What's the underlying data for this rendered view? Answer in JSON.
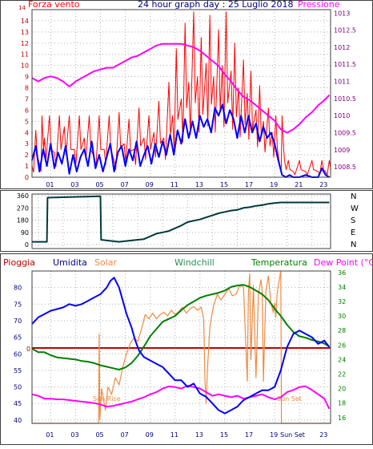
{
  "colors": {
    "wind": "#ff0000",
    "wind_avg": "#0000ff",
    "pressure": "#ff00ff",
    "direction": "#003a3a",
    "humidity": "#0000ff",
    "solar": "#f08a40",
    "windchill": "#2e8b57",
    "temperature": "#008000",
    "dewpoint": "#ff00ff",
    "rain": "#c00000",
    "axis_red": "#c00000",
    "axis_navy": "#000080",
    "axis_violet": "#800080",
    "grid": "#b0b0b0"
  },
  "chart_data": [
    {
      "type": "line",
      "title": "24 hour graph day : 25 Luglio 2018",
      "left_label": "Forza vento",
      "right_label": "Pressione",
      "y_ticks": [
        0,
        1,
        2,
        3,
        4,
        5,
        6,
        7,
        8,
        9,
        10,
        11,
        12,
        13,
        14
      ],
      "y_ticks_top": "14",
      "ylim": [
        0,
        15
      ],
      "y2_ticks": [
        "1008.5",
        "1009",
        "1009.5",
        "1010",
        "1010.5",
        "1011",
        "1011.5",
        "1012",
        "1012.5",
        "1013"
      ],
      "y2lim": [
        1008.2,
        1013.1
      ],
      "x_ticks": [
        "01",
        "03",
        "05",
        "07",
        "09",
        "11",
        "13",
        "15",
        "17",
        "19",
        "21",
        "23"
      ],
      "xlim": [
        0,
        24
      ],
      "series": [
        {
          "key": "wind_gust",
          "x": [
            0,
            0.3,
            0.6,
            0.8,
            1.0,
            1.4,
            1.8,
            2.2,
            2.6,
            3.0,
            3.4,
            3.8,
            4.2,
            4.6,
            5.0,
            5.4,
            5.8,
            6.2,
            6.6,
            7.0,
            7.4,
            7.8,
            8.2,
            8.6,
            9.0,
            9.4,
            9.8,
            10.2,
            10.6,
            11.0,
            11.3,
            11.6,
            12.0,
            12.3,
            12.6,
            13.0,
            13.3,
            13.6,
            14.0,
            14.3,
            14.6,
            15.0,
            15.3,
            15.6,
            16.0,
            16.3,
            16.6,
            17.0,
            17.3,
            17.6,
            18.0,
            18.3,
            18.6,
            19.0,
            19.3,
            19.6,
            19.9,
            20.1,
            20.3,
            20.6,
            21.0,
            21.5,
            22.0,
            22.5,
            23.0,
            23.3,
            23.6,
            23.9
          ],
          "values": [
            1.0,
            4.2,
            1.2,
            5.5,
            3.5,
            5.5,
            2.2,
            5.5,
            4.5,
            5.5,
            2.5,
            5.5,
            3.5,
            5.5,
            1.8,
            5.5,
            2.5,
            5.5,
            1.5,
            5.8,
            3.0,
            5.2,
            2.5,
            6.2,
            3.5,
            5.5,
            4.0,
            6.8,
            3.5,
            8.5,
            5.5,
            11.5,
            7.0,
            13.8,
            8.5,
            14.8,
            9.0,
            12.5,
            10.2,
            14.5,
            9.0,
            13.2,
            10.0,
            14.8,
            9.5,
            12.0,
            8.0,
            10.5,
            7.5,
            9.5,
            6.0,
            8.2,
            5.0,
            6.2,
            4.0,
            5.5,
            1.2,
            5.5,
            1.5,
            1.5,
            0.5,
            1.5,
            0.5,
            1.5,
            0.5,
            1.5,
            0.5,
            1.5
          ]
        },
        {
          "key": "wind_avg",
          "x": [
            0,
            0.3,
            0.6,
            0.9,
            1.2,
            1.5,
            1.8,
            2.1,
            2.4,
            2.7,
            3.0,
            3.3,
            3.6,
            3.9,
            4.2,
            4.5,
            4.8,
            5.1,
            5.4,
            5.7,
            6.0,
            6.3,
            6.6,
            6.9,
            7.2,
            7.5,
            7.8,
            8.1,
            8.4,
            8.7,
            9.0,
            9.3,
            9.6,
            9.9,
            10.2,
            10.5,
            10.8,
            11.1,
            11.4,
            11.7,
            12.0,
            12.3,
            12.6,
            12.9,
            13.2,
            13.5,
            13.8,
            14.1,
            14.4,
            14.7,
            15.0,
            15.3,
            15.6,
            15.9,
            16.2,
            16.5,
            16.8,
            17.1,
            17.4,
            17.7,
            18.0,
            18.3,
            18.6,
            18.9,
            19.2,
            19.5,
            19.8,
            20.1,
            20.4,
            20.7,
            21.0,
            21.5,
            22.0,
            22.5,
            23.0,
            23.3,
            23.6,
            23.9
          ],
          "values": [
            1.5,
            2.8,
            0.5,
            2.5,
            1.0,
            3.0,
            0.8,
            2.2,
            1.2,
            2.8,
            0.3,
            2.0,
            0.5,
            1.8,
            2.5,
            1.0,
            3.2,
            0.8,
            2.0,
            0.5,
            1.8,
            3.0,
            0.5,
            2.2,
            2.8,
            1.0,
            2.5,
            1.5,
            3.2,
            1.0,
            2.0,
            2.8,
            1.2,
            3.0,
            1.8,
            3.2,
            2.0,
            3.8,
            2.0,
            4.2,
            3.0,
            5.2,
            3.5,
            5.0,
            3.5,
            5.5,
            4.5,
            5.2,
            4.0,
            6.2,
            5.5,
            6.5,
            4.8,
            6.0,
            5.2,
            3.5,
            5.5,
            4.0,
            5.5,
            4.0,
            4.8,
            3.2,
            4.5,
            3.5,
            4.0,
            3.0,
            1.5,
            0.2,
            0.0,
            0.2,
            0.0,
            0.0,
            0.2,
            0.0,
            0.0,
            0.8,
            0.2,
            0.0
          ]
        },
        {
          "key": "pressure",
          "x": [
            0,
            0.5,
            1,
            1.5,
            2,
            2.5,
            3,
            3.5,
            4,
            4.5,
            5,
            5.5,
            6,
            6.5,
            7,
            7.5,
            8,
            8.5,
            9,
            9.5,
            10,
            10.5,
            11,
            11.5,
            12,
            12.5,
            13,
            13.5,
            14,
            14.5,
            15,
            15.5,
            16,
            16.5,
            17,
            17.5,
            18,
            18.5,
            19,
            19.5,
            20,
            20.5,
            21,
            21.5,
            22,
            22.5,
            23,
            23.5,
            23.9
          ],
          "values": [
            1011.1,
            1011.0,
            1011.1,
            1011.15,
            1011.1,
            1011.0,
            1010.85,
            1011.0,
            1011.1,
            1011.2,
            1011.3,
            1011.35,
            1011.4,
            1011.4,
            1011.5,
            1011.6,
            1011.7,
            1011.75,
            1011.85,
            1011.95,
            1012.05,
            1012.1,
            1012.1,
            1012.1,
            1012.1,
            1012.05,
            1012.0,
            1011.9,
            1011.75,
            1011.6,
            1011.45,
            1011.2,
            1011.0,
            1010.75,
            1010.55,
            1010.45,
            1010.3,
            1010.15,
            1010.0,
            1009.85,
            1009.6,
            1009.5,
            1009.6,
            1009.75,
            1009.95,
            1010.1,
            1010.3,
            1010.45,
            1010.6
          ]
        }
      ]
    },
    {
      "type": "line",
      "y_ticks": [
        "0",
        "90",
        "180",
        "270",
        "360"
      ],
      "ylim": [
        0,
        360
      ],
      "compass_labels": [
        "N",
        "W",
        "S",
        "E",
        "N"
      ],
      "xlim": [
        0,
        24
      ],
      "series": [
        {
          "key": "direction",
          "x": [
            0,
            1.2,
            1.25,
            5.5,
            5.55,
            6,
            7,
            8,
            9,
            9.5,
            10,
            10.5,
            11,
            11.5,
            12,
            12.5,
            13,
            13.5,
            14,
            14.5,
            15,
            15.5,
            16,
            16.5,
            17,
            17.5,
            18,
            18.5,
            19,
            19.5,
            20,
            21,
            22,
            23,
            23.9
          ],
          "values": [
            20,
            20,
            345,
            355,
            35,
            30,
            20,
            30,
            40,
            60,
            80,
            90,
            100,
            120,
            140,
            165,
            175,
            185,
            200,
            215,
            230,
            240,
            250,
            255,
            270,
            275,
            285,
            290,
            300,
            305,
            310,
            310,
            310,
            310,
            310
          ]
        }
      ]
    },
    {
      "type": "line",
      "title_labels": {
        "rain": "Pioggia",
        "humidity": "Umidita",
        "solar": "Solar",
        "windchill": "Windchill",
        "temperature": "Temperatura",
        "dewpoint": "Dew Point (°C)"
      },
      "rain_tick": "0",
      "humidity_ticks": [
        "40",
        "45",
        "50",
        "55",
        "60",
        "65",
        "70",
        "75",
        "80"
      ],
      "humidity_lim": [
        39,
        85
      ],
      "temp_ticks": [
        "16",
        "18",
        "20",
        "22",
        "24",
        "26",
        "28",
        "30",
        "32",
        "34",
        "36"
      ],
      "temp_lim": [
        15.2,
        36.2
      ],
      "x_ticks": [
        "01",
        "03",
        "05",
        "07",
        "09",
        "11",
        "13",
        "15",
        "17",
        "19",
        "21",
        "23"
      ],
      "x_special": [
        "Sun Set"
      ],
      "sunrise_label": "Sun Rise",
      "sunset_label": "Sun Set",
      "xlim": [
        0,
        24
      ],
      "series": [
        {
          "key": "humidity",
          "x": [
            0,
            0.5,
            1,
            1.5,
            2,
            2.5,
            3,
            3.5,
            4,
            4.5,
            5,
            5.5,
            6,
            6.3,
            6.6,
            7,
            7.3,
            7.6,
            8,
            8.3,
            8.6,
            9,
            9.5,
            10,
            10.5,
            11,
            11.5,
            12,
            12.5,
            13,
            13.5,
            14,
            14.5,
            15,
            15.5,
            16,
            16.5,
            17,
            17.5,
            18,
            18.5,
            19,
            19.5,
            20,
            20.5,
            21,
            21.5,
            22,
            22.5,
            23,
            23.5,
            23.9
          ],
          "values": [
            69,
            71,
            72,
            73,
            73.5,
            74,
            75,
            74.5,
            75,
            76,
            77,
            78,
            80,
            82,
            83,
            80,
            76,
            72,
            68,
            64,
            61,
            59,
            58,
            57,
            56,
            54,
            52,
            52,
            50,
            51,
            48,
            47,
            45,
            43,
            42,
            43,
            44,
            46,
            47,
            48,
            49,
            49,
            50,
            55,
            62,
            66,
            67,
            66,
            65,
            63,
            64,
            62
          ]
        },
        {
          "key": "temperature",
          "x": [
            0,
            0.5,
            1,
            1.5,
            2,
            2.5,
            3,
            3.5,
            4,
            4.5,
            5,
            5.5,
            6,
            6.5,
            7,
            7.5,
            8,
            8.5,
            9,
            9.5,
            10,
            10.5,
            11,
            11.5,
            12,
            12.5,
            13,
            13.5,
            14,
            14.5,
            15,
            15.5,
            16,
            16.5,
            17,
            17.5,
            18,
            18.5,
            19,
            19.5,
            20,
            20.5,
            21,
            21.5,
            22,
            22.5,
            23,
            23.5,
            23.9
          ],
          "values": [
            25.5,
            25.0,
            25.0,
            24.6,
            24.3,
            24.2,
            24.1,
            24.0,
            23.8,
            23.7,
            23.5,
            23.2,
            23.0,
            22.8,
            22.6,
            22.9,
            23.5,
            24.5,
            25.8,
            27.2,
            28.2,
            29.2,
            29.6,
            30.0,
            30.8,
            31.5,
            32.0,
            32.5,
            32.8,
            33.0,
            33.2,
            33.5,
            34.0,
            34.2,
            34.3,
            34.0,
            33.5,
            33.0,
            32.2,
            31.0,
            30.0,
            28.8,
            27.8,
            27.2,
            27.0,
            26.7,
            26.5,
            26.2,
            25.8
          ]
        },
        {
          "key": "solar",
          "x": [
            0,
            5.35,
            5.4,
            5.45,
            5.6,
            5.9,
            6.1,
            6.4,
            6.7,
            7.0,
            7.3,
            7.6,
            7.9,
            8.2,
            8.5,
            8.8,
            9.1,
            9.4,
            9.7,
            10.0,
            10.3,
            10.6,
            10.9,
            11.2,
            11.5,
            11.8,
            12.1,
            12.4,
            12.7,
            13.0,
            13.3,
            13.6,
            13.8,
            13.9,
            14.0,
            14.1,
            14.3,
            14.6,
            14.9,
            15.2,
            15.5,
            15.8,
            16.1,
            16.4,
            16.7,
            17.0,
            17.2,
            17.3,
            17.4,
            17.5,
            17.6,
            17.8,
            18.0,
            18.2,
            18.4,
            18.5,
            18.6,
            18.8,
            19.0,
            19.2,
            19.4,
            19.5,
            19.6,
            19.7,
            19.8,
            20.0,
            20.05,
            20.1,
            24
          ],
          "values": [
            15.2,
            15.2,
            27.5,
            15.8,
            20.0,
            17.0,
            20.2,
            19.2,
            21.5,
            20.5,
            23.0,
            24.8,
            26.2,
            27.0,
            26.5,
            28.2,
            30.2,
            29.6,
            30.4,
            29.6,
            30.2,
            30.5,
            30.0,
            30.8,
            30.2,
            30.6,
            31.2,
            30.4,
            31.0,
            31.3,
            30.8,
            31.2,
            29.6,
            21.2,
            18.0,
            22.5,
            28.5,
            31.5,
            33.0,
            32.2,
            33.0,
            33.8,
            32.8,
            33.0,
            34.2,
            34.0,
            25.5,
            21.0,
            33.5,
            35.8,
            24.0,
            34.2,
            21.5,
            33.0,
            35.0,
            33.5,
            21.0,
            33.5,
            35.5,
            31.8,
            30.5,
            31.8,
            29.8,
            33.0,
            34.2,
            36.2,
            15.2,
            15.2,
            15.2
          ]
        },
        {
          "key": "dewpoint",
          "x": [
            0,
            0.5,
            1,
            1.5,
            2,
            2.5,
            3,
            3.5,
            4,
            4.5,
            5,
            5.5,
            6,
            6.5,
            7,
            7.5,
            8,
            8.5,
            9,
            9.5,
            10,
            10.5,
            11,
            11.5,
            12,
            12.5,
            13,
            13.5,
            14,
            14.5,
            15,
            15.5,
            16,
            16.5,
            17,
            17.5,
            18,
            18.5,
            19,
            19.5,
            20,
            20.5,
            21,
            21.5,
            22,
            22.5,
            23,
            23.5,
            23.9
          ],
          "values": [
            19.2,
            19.0,
            18.6,
            18.6,
            18.5,
            18.5,
            18.4,
            18.3,
            18.2,
            18.1,
            18.0,
            17.8,
            17.5,
            17.6,
            17.8,
            18.0,
            18.2,
            18.5,
            18.8,
            19.2,
            19.5,
            20.0,
            20.3,
            20.2,
            20.0,
            20.4,
            20.2,
            20.0,
            19.5,
            19.0,
            19.2,
            19.0,
            18.8,
            19.0,
            18.6,
            18.8,
            19.0,
            19.2,
            18.8,
            18.5,
            18.8,
            19.5,
            19.8,
            20.2,
            20.3,
            19.8,
            19.2,
            18.6,
            17.2
          ]
        },
        {
          "key": "rain",
          "values": [
            0,
            0
          ]
        }
      ]
    }
  ]
}
